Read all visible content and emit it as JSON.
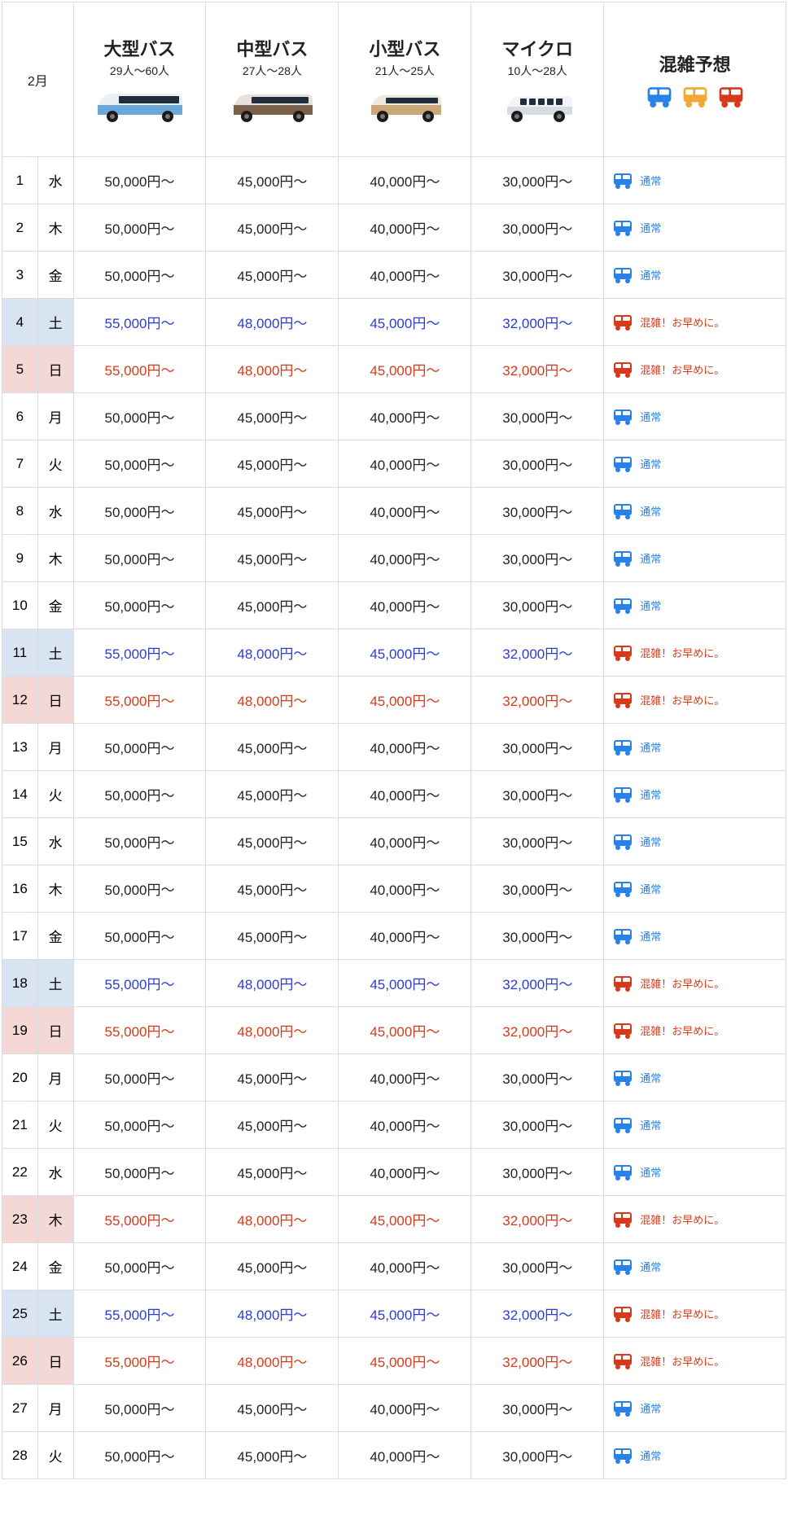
{
  "month_label": "2月",
  "bus_types": [
    {
      "title": "大型バス",
      "capacity": "29人～60人",
      "body_color": "#6aa8d9",
      "roof_color": "#eceff4"
    },
    {
      "title": "中型バス",
      "capacity": "27人～28人",
      "body_color": "#7a5f49",
      "roof_color": "#e6e1db"
    },
    {
      "title": "小型バス",
      "capacity": "21人～25人",
      "body_color": "#caa878",
      "roof_color": "#efe8dd"
    },
    {
      "title": "マイクロ",
      "capacity": "10人～28人",
      "body_color": "#d8dbe0",
      "roof_color": "#f2f4f7"
    }
  ],
  "congestion_header": "混雑予想",
  "cong_icon_colors": [
    "#2882e8",
    "#f2a934",
    "#d63a1a"
  ],
  "normal_color": "#2882e8",
  "busy_color": "#d63a1a",
  "cong_labels": {
    "normal": "通常",
    "busy": "混雑！お早めに。"
  },
  "price_normal": [
    "50,000円～",
    "45,000円～",
    "40,000円～",
    "30,000円～"
  ],
  "price_busy": [
    "55,000円～",
    "48,000円～",
    "45,000円～",
    "32,000円～"
  ],
  "rows": [
    {
      "d": "1",
      "w": "水",
      "bg": "",
      "tc": "t-w",
      "pk": "price_normal",
      "cong": "normal"
    },
    {
      "d": "2",
      "w": "木",
      "bg": "",
      "tc": "t-w",
      "pk": "price_normal",
      "cong": "normal"
    },
    {
      "d": "3",
      "w": "金",
      "bg": "",
      "tc": "t-w",
      "pk": "price_normal",
      "cong": "normal"
    },
    {
      "d": "4",
      "w": "土",
      "bg": "bg-sat",
      "tc": "t-sat",
      "pk": "price_busy",
      "cong": "busy"
    },
    {
      "d": "5",
      "w": "日",
      "bg": "bg-sun",
      "tc": "t-sun",
      "pk": "price_busy",
      "cong": "busy"
    },
    {
      "d": "6",
      "w": "月",
      "bg": "",
      "tc": "t-w",
      "pk": "price_normal",
      "cong": "normal"
    },
    {
      "d": "7",
      "w": "火",
      "bg": "",
      "tc": "t-w",
      "pk": "price_normal",
      "cong": "normal"
    },
    {
      "d": "8",
      "w": "水",
      "bg": "",
      "tc": "t-w",
      "pk": "price_normal",
      "cong": "normal"
    },
    {
      "d": "9",
      "w": "木",
      "bg": "",
      "tc": "t-w",
      "pk": "price_normal",
      "cong": "normal"
    },
    {
      "d": "10",
      "w": "金",
      "bg": "",
      "tc": "t-w",
      "pk": "price_normal",
      "cong": "normal"
    },
    {
      "d": "11",
      "w": "土",
      "bg": "bg-sat",
      "tc": "t-sat",
      "pk": "price_busy",
      "cong": "busy"
    },
    {
      "d": "12",
      "w": "日",
      "bg": "bg-sun",
      "tc": "t-sun",
      "pk": "price_busy",
      "cong": "busy"
    },
    {
      "d": "13",
      "w": "月",
      "bg": "",
      "tc": "t-w",
      "pk": "price_normal",
      "cong": "normal"
    },
    {
      "d": "14",
      "w": "火",
      "bg": "",
      "tc": "t-w",
      "pk": "price_normal",
      "cong": "normal"
    },
    {
      "d": "15",
      "w": "水",
      "bg": "",
      "tc": "t-w",
      "pk": "price_normal",
      "cong": "normal"
    },
    {
      "d": "16",
      "w": "木",
      "bg": "",
      "tc": "t-w",
      "pk": "price_normal",
      "cong": "normal"
    },
    {
      "d": "17",
      "w": "金",
      "bg": "",
      "tc": "t-w",
      "pk": "price_normal",
      "cong": "normal"
    },
    {
      "d": "18",
      "w": "土",
      "bg": "bg-sat",
      "tc": "t-sat",
      "pk": "price_busy",
      "cong": "busy"
    },
    {
      "d": "19",
      "w": "日",
      "bg": "bg-sun",
      "tc": "t-sun",
      "pk": "price_busy",
      "cong": "busy"
    },
    {
      "d": "20",
      "w": "月",
      "bg": "",
      "tc": "t-w",
      "pk": "price_normal",
      "cong": "normal"
    },
    {
      "d": "21",
      "w": "火",
      "bg": "",
      "tc": "t-w",
      "pk": "price_normal",
      "cong": "normal"
    },
    {
      "d": "22",
      "w": "水",
      "bg": "",
      "tc": "t-w",
      "pk": "price_normal",
      "cong": "normal"
    },
    {
      "d": "23",
      "w": "木",
      "bg": "bg-sun",
      "tc": "t-sun",
      "pk": "price_busy",
      "cong": "busy"
    },
    {
      "d": "24",
      "w": "金",
      "bg": "",
      "tc": "t-w",
      "pk": "price_normal",
      "cong": "normal"
    },
    {
      "d": "25",
      "w": "土",
      "bg": "bg-sat",
      "tc": "t-sat",
      "pk": "price_busy",
      "cong": "busy"
    },
    {
      "d": "26",
      "w": "日",
      "bg": "bg-sun",
      "tc": "t-sun",
      "pk": "price_busy",
      "cong": "busy"
    },
    {
      "d": "27",
      "w": "月",
      "bg": "",
      "tc": "t-w",
      "pk": "price_normal",
      "cong": "normal"
    },
    {
      "d": "28",
      "w": "火",
      "bg": "",
      "tc": "t-w",
      "pk": "price_normal",
      "cong": "normal"
    }
  ]
}
